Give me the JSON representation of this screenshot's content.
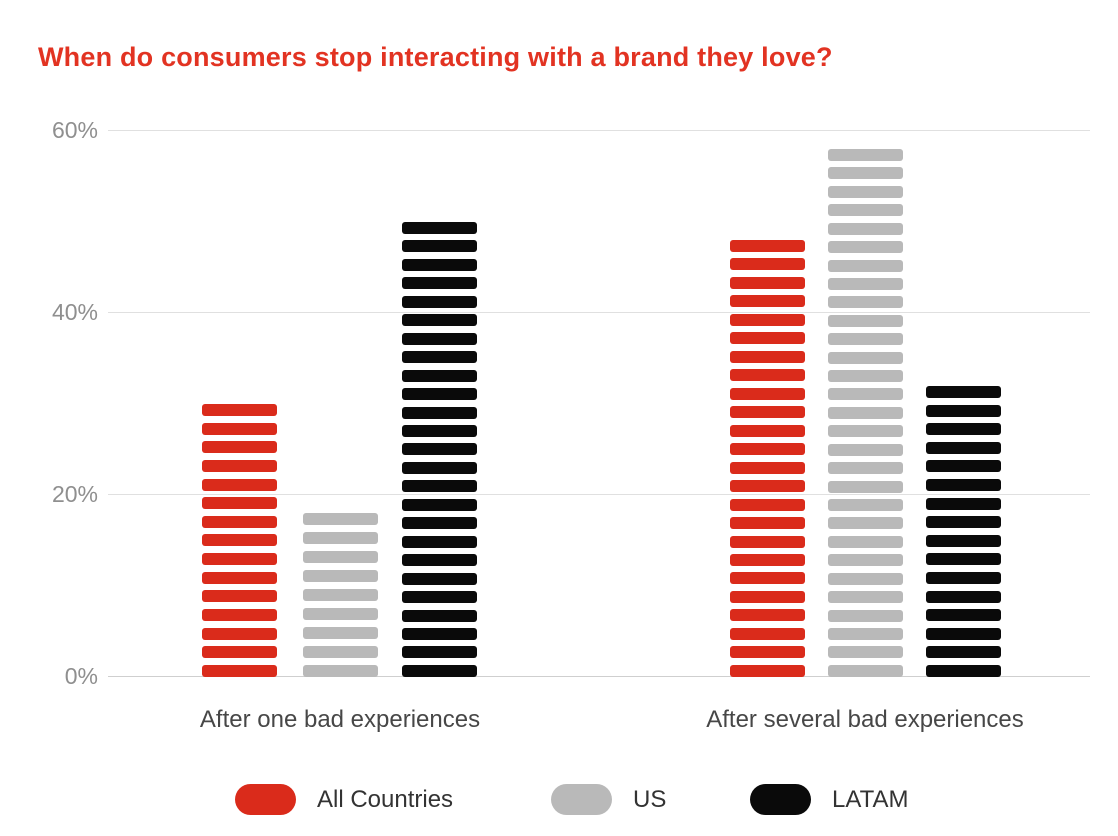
{
  "chart_data": {
    "type": "bar",
    "title": "When do consumers stop interacting with a brand they love?",
    "title_color": "#e23322",
    "categories": [
      "After one bad experiences",
      "After several bad experiences"
    ],
    "series": [
      {
        "name": "All Countries",
        "color": "#da2b1b",
        "values": [
          30,
          48
        ]
      },
      {
        "name": "US",
        "color": "#b9b9b9",
        "values": [
          18,
          58
        ]
      },
      {
        "name": "LATAM",
        "color": "#0a0a0a",
        "values": [
          50,
          32
        ]
      }
    ],
    "xlabel": "",
    "ylabel": "",
    "ylim": [
      0,
      60
    ],
    "yticks": [
      {
        "label": "60%",
        "value": 60
      },
      {
        "label": "40%",
        "value": 40
      },
      {
        "label": "20%",
        "value": 20
      },
      {
        "label": "0%",
        "value": 0
      }
    ],
    "grid": true,
    "legend_position": "bottom",
    "bar_style": "horizontal-striped"
  }
}
